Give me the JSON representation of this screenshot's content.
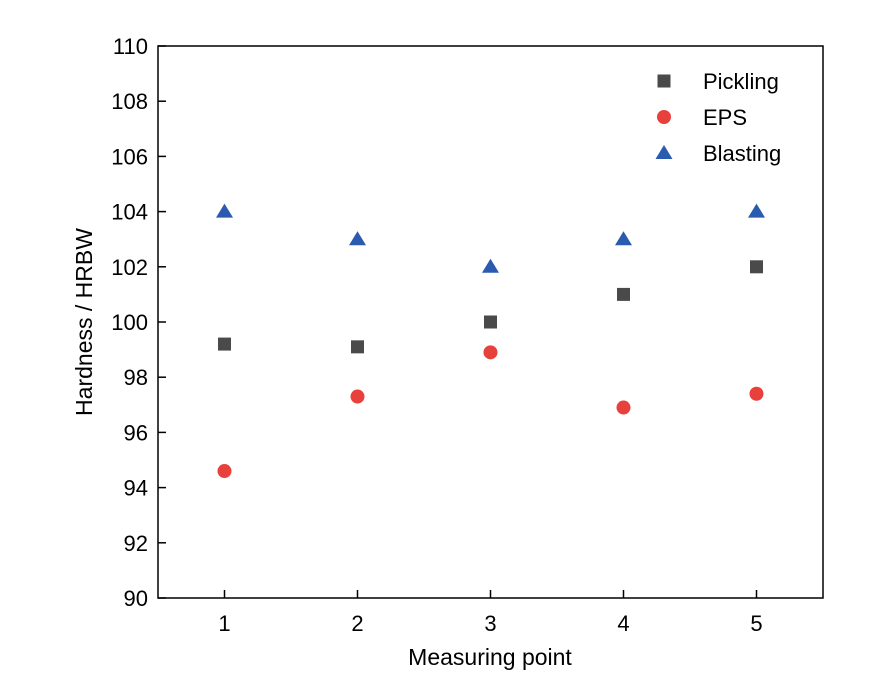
{
  "chart_data": {
    "type": "scatter",
    "title": "",
    "xlabel": "Measuring point",
    "ylabel": "Hardness / HRBW",
    "x": [
      1,
      2,
      3,
      4,
      5
    ],
    "xlim": [
      0.5,
      5.5
    ],
    "ylim": [
      90,
      110
    ],
    "xticks": [
      1,
      2,
      3,
      4,
      5
    ],
    "yticks": [
      90,
      92,
      94,
      96,
      98,
      100,
      102,
      104,
      106,
      108,
      110
    ],
    "grid": false,
    "legend_position": "top-right",
    "series": [
      {
        "name": "Pickling",
        "marker": "square",
        "color": "#4a4a4a",
        "values": [
          99.2,
          99.1,
          100.0,
          101.0,
          102.0
        ]
      },
      {
        "name": "EPS",
        "marker": "circle",
        "color": "#e8403a",
        "values": [
          94.6,
          97.3,
          98.9,
          96.9,
          97.4
        ]
      },
      {
        "name": "Blasting",
        "marker": "triangle",
        "color": "#2a5bb0",
        "values": [
          104.0,
          103.0,
          102.0,
          103.0,
          104.0
        ]
      }
    ]
  }
}
